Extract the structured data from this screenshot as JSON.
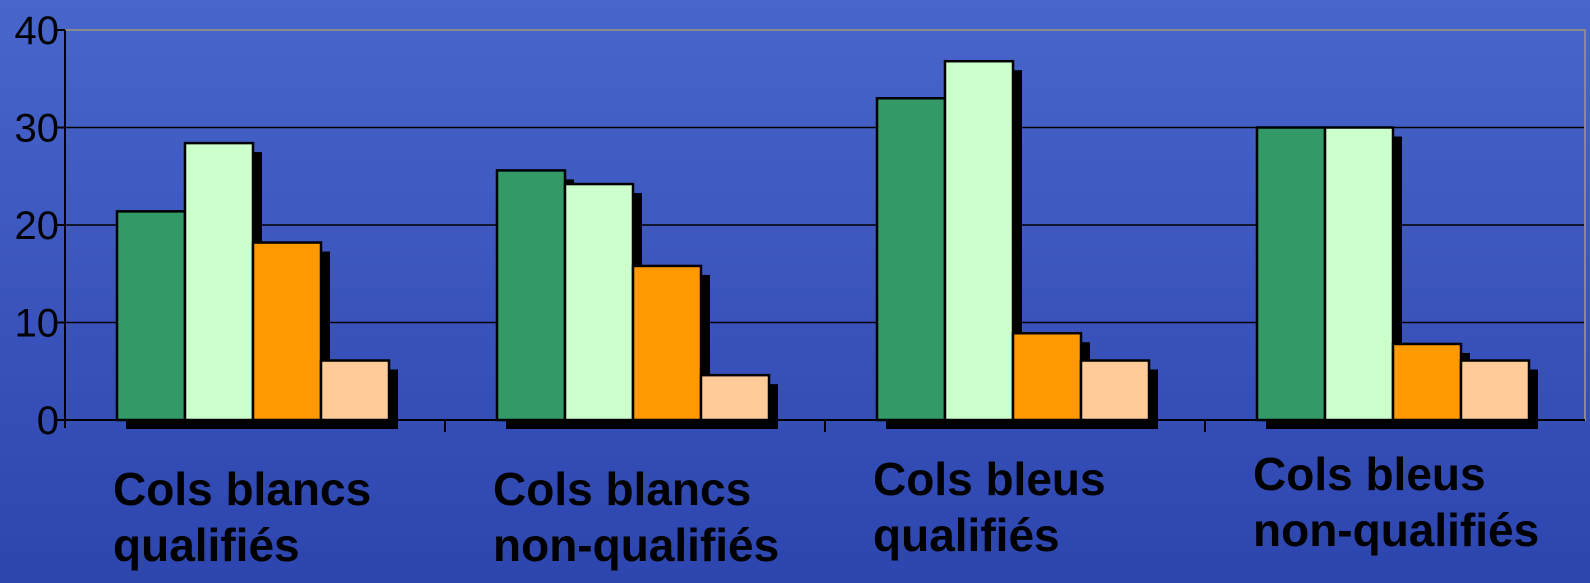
{
  "chart_data": {
    "type": "bar",
    "title": "",
    "xlabel": "",
    "ylabel": "",
    "ylim": [
      0,
      40
    ],
    "yticks": [
      0,
      10,
      20,
      30,
      40
    ],
    "grid": true,
    "categories": [
      [
        "Cols blancs",
        "qualifiés"
      ],
      [
        "Cols blancs",
        "non-qualifiés"
      ],
      [
        "Cols bleus",
        "qualifiés"
      ],
      [
        "Cols bleus",
        "non-qualifiés"
      ]
    ],
    "series": [
      {
        "color": "#339966",
        "values": [
          21.4,
          25.6,
          33.0,
          30.0
        ]
      },
      {
        "color": "#ccffcc",
        "values": [
          28.4,
          24.2,
          36.8,
          30.0
        ]
      },
      {
        "color": "#ff9900",
        "values": [
          18.2,
          15.8,
          8.9,
          7.8
        ]
      },
      {
        "color": "#ffcc99",
        "values": [
          6.1,
          4.6,
          6.1,
          6.1
        ]
      }
    ]
  }
}
